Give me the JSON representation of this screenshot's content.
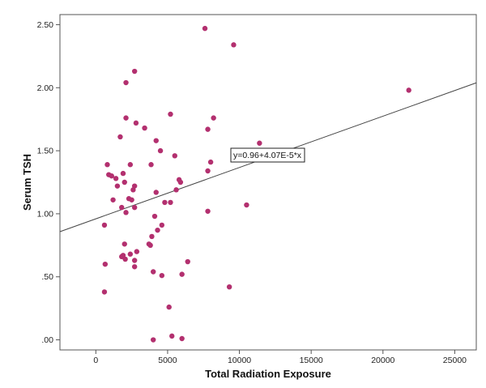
{
  "chart_data": {
    "type": "scatter",
    "xlabel": "Total Radiation Exposure",
    "ylabel": "Serum TSH",
    "xlim": [
      -2500,
      26500
    ],
    "ylim": [
      -0.08,
      2.58
    ],
    "x_ticks": [
      0,
      5000,
      10000,
      15000,
      20000,
      25000
    ],
    "x_tick_labels": [
      "0",
      "5000",
      "10000",
      "15000",
      "20000",
      "25000"
    ],
    "y_ticks": [
      0,
      0.5,
      1.0,
      1.5,
      2.0,
      2.5
    ],
    "y_tick_labels": [
      ".00",
      ".50",
      "1.00",
      "1.50",
      "2.00",
      "2.50"
    ],
    "grid": false,
    "legend": "none",
    "marker_color": "#b3306f",
    "fit_line": {
      "intercept": 0.96,
      "slope": 4.07e-05,
      "color": "#444444",
      "equation_label": "y=0.96+4.07E-5*x"
    },
    "points": [
      [
        600,
        0.91
      ],
      [
        650,
        0.6
      ],
      [
        600,
        0.38
      ],
      [
        800,
        1.39
      ],
      [
        900,
        1.31
      ],
      [
        1100,
        1.3
      ],
      [
        1200,
        1.11
      ],
      [
        1400,
        1.28
      ],
      [
        1500,
        1.22
      ],
      [
        1700,
        1.61
      ],
      [
        1800,
        1.05
      ],
      [
        1800,
        0.66
      ],
      [
        1900,
        1.32
      ],
      [
        1900,
        0.67
      ],
      [
        2000,
        1.25
      ],
      [
        2000,
        0.76
      ],
      [
        2050,
        0.64
      ],
      [
        2100,
        2.04
      ],
      [
        2100,
        1.76
      ],
      [
        2100,
        1.01
      ],
      [
        2300,
        1.12
      ],
      [
        2400,
        1.39
      ],
      [
        2400,
        0.68
      ],
      [
        2500,
        1.11
      ],
      [
        2600,
        1.19
      ],
      [
        2700,
        2.13
      ],
      [
        2700,
        1.22
      ],
      [
        2700,
        1.05
      ],
      [
        2700,
        0.63
      ],
      [
        2700,
        0.58
      ],
      [
        2800,
        1.72
      ],
      [
        2850,
        0.7
      ],
      [
        3400,
        1.68
      ],
      [
        3700,
        0.76
      ],
      [
        3800,
        0.75
      ],
      [
        3850,
        1.39
      ],
      [
        3900,
        0.82
      ],
      [
        4000,
        0.54
      ],
      [
        4000,
        0.0
      ],
      [
        4100,
        0.98
      ],
      [
        4200,
        1.58
      ],
      [
        4200,
        1.17
      ],
      [
        4300,
        0.87
      ],
      [
        4500,
        1.5
      ],
      [
        4600,
        0.91
      ],
      [
        4600,
        0.51
      ],
      [
        4800,
        1.09
      ],
      [
        5100,
        0.26
      ],
      [
        5200,
        1.79
      ],
      [
        5200,
        1.09
      ],
      [
        5300,
        0.03
      ],
      [
        5500,
        1.46
      ],
      [
        5600,
        1.19
      ],
      [
        5800,
        1.27
      ],
      [
        5900,
        1.25
      ],
      [
        6000,
        0.52
      ],
      [
        6000,
        0.01
      ],
      [
        6400,
        0.62
      ],
      [
        7600,
        2.47
      ],
      [
        7800,
        1.67
      ],
      [
        7800,
        1.34
      ],
      [
        7800,
        1.02
      ],
      [
        8000,
        1.41
      ],
      [
        8200,
        1.76
      ],
      [
        9300,
        0.42
      ],
      [
        9600,
        2.34
      ],
      [
        10500,
        1.07
      ],
      [
        11400,
        1.56
      ],
      [
        21800,
        1.98
      ]
    ]
  }
}
